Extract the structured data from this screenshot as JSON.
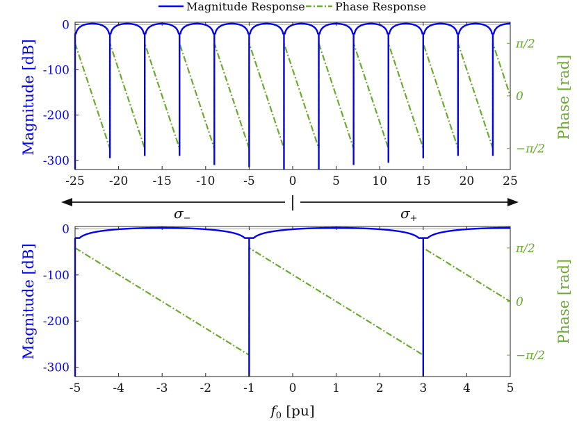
{
  "legend": {
    "magnitude_label": "Magnitude Response",
    "phase_label": "Phase Response"
  },
  "colors": {
    "magnitude": "#0000ff",
    "phase": "#6aaa2e",
    "axis": "#111111"
  },
  "arrows": {
    "left_label": "σ",
    "left_sub": "−",
    "right_label": "σ",
    "right_sub": "+"
  },
  "chart_data": [
    {
      "type": "line",
      "xlim": [
        -25,
        25
      ],
      "x_ticks": [
        -25,
        -20,
        -15,
        -10,
        -5,
        0,
        5,
        10,
        15,
        20,
        25
      ],
      "x_tick_labels": [
        "-25",
        "-20",
        "-15",
        "-10",
        "-5",
        "0",
        "5",
        "10",
        "15",
        "20",
        "25"
      ],
      "ylabel": "Magnitude [dB]",
      "ylim": [
        -320,
        5
      ],
      "y_ticks": [
        0,
        -100,
        -200,
        -300
      ],
      "y_tick_labels": [
        "0",
        "-100",
        "-200",
        "-300"
      ],
      "ylabel_right": "Phase [rad]",
      "ylim_right": [
        -2.2,
        2.2
      ],
      "y_ticks_right": [
        1.5708,
        0,
        -1.5708
      ],
      "y_tick_labels_right": [
        "π/2",
        "0",
        "−π/2"
      ],
      "notch_frequencies": [
        -25,
        -21,
        -17,
        -13,
        -9,
        -5,
        -1,
        3,
        7,
        11,
        15,
        19,
        23
      ],
      "notch_depths_db": [
        -320,
        -295,
        -290,
        -290,
        -310,
        -315,
        -320,
        -320,
        -310,
        -305,
        -295,
        -290,
        -290
      ],
      "phase_period": 4,
      "series": [
        {
          "name": "Magnitude Response",
          "description_y": "magnitude in dB, 0 dB between notches"
        },
        {
          "name": "Phase Response",
          "description_y": "sawtooth from π/2 down to −π/2 between notches"
        }
      ]
    },
    {
      "type": "line",
      "xlim": [
        -5,
        5
      ],
      "x_ticks": [
        -5,
        -4,
        -3,
        -2,
        -1,
        0,
        1,
        2,
        3,
        4,
        5
      ],
      "x_tick_labels": [
        "-5",
        "-4",
        "-3",
        "-2",
        "-1",
        "0",
        "1",
        "2",
        "3",
        "4",
        "5"
      ],
      "xlabel": "[pu]",
      "xlabel_symbol": "f",
      "xlabel_sub": "0",
      "ylabel": "Magnitude [dB]",
      "ylim": [
        -320,
        5
      ],
      "y_ticks": [
        0,
        -100,
        -200,
        -300
      ],
      "y_tick_labels": [
        "0",
        "-100",
        "-200",
        "-300"
      ],
      "ylabel_right": "Phase [rad]",
      "ylim_right": [
        -2.2,
        2.2
      ],
      "y_ticks_right": [
        1.5708,
        0,
        -1.5708
      ],
      "y_tick_labels_right": [
        "π/2",
        "0",
        "−π/2"
      ],
      "notch_frequencies": [
        -5,
        -1,
        3
      ],
      "notch_depths_db": [
        -320,
        -320,
        -320
      ],
      "phase_period": 4,
      "series": [
        {
          "name": "Magnitude Response",
          "description_y": "magnitude in dB, 0 dB between notches"
        },
        {
          "name": "Phase Response",
          "description_y": "sawtooth from π/2 down to −π/2 between notches"
        }
      ]
    }
  ]
}
